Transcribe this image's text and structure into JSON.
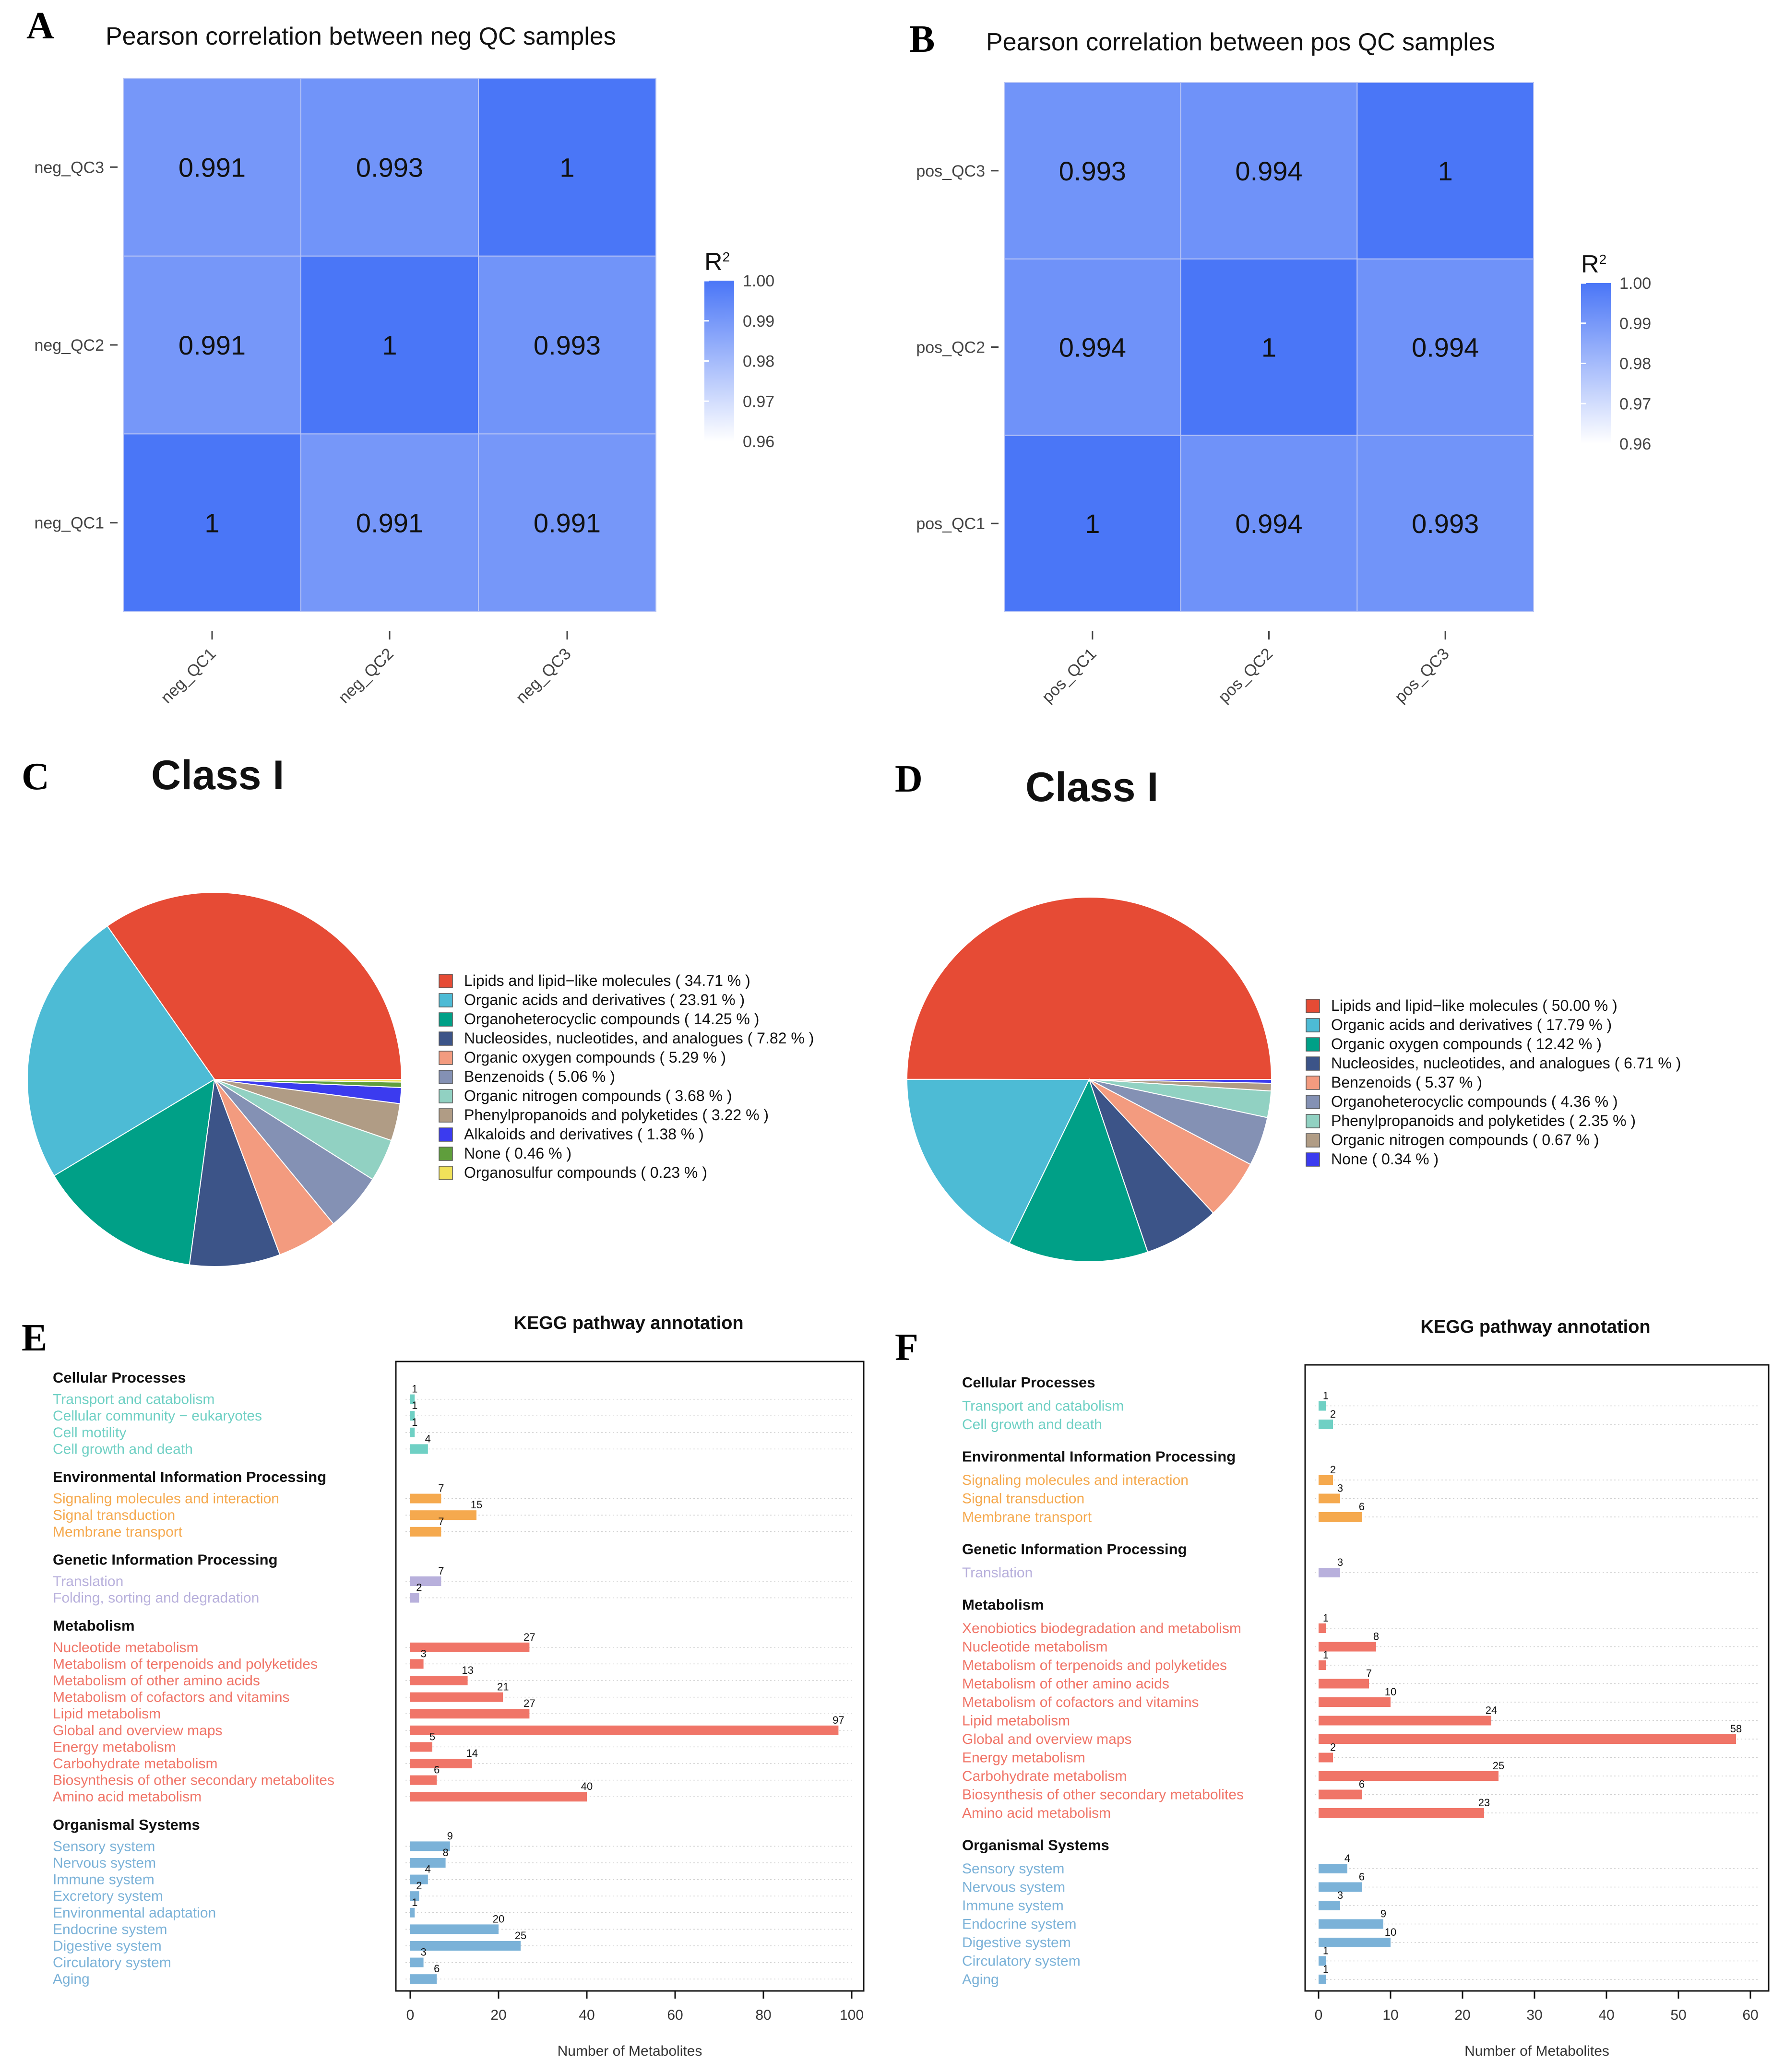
{
  "panels": {
    "A": "A",
    "B": "B",
    "C": "C",
    "D": "D",
    "E": "E",
    "F": "F"
  },
  "colors": {
    "heat_high": "#4a76f7",
    "heat_low": "#ffffff",
    "kegg": {
      "Cellular Processes": "#6fd0c4",
      "Environmental Information Processing": "#f5a94e",
      "Genetic Information Processing": "#b8b0dc",
      "Metabolism": "#f07568",
      "Organismal Systems": "#7bb2d8"
    }
  },
  "chart_data": [
    {
      "id": "A",
      "type": "heatmap",
      "title": "Pearson correlation between neg QC samples",
      "x_labels": [
        "neg_QC1",
        "neg_QC2",
        "neg_QC3"
      ],
      "y_labels": [
        "neg_QC1",
        "neg_QC2",
        "neg_QC3"
      ],
      "values": [
        [
          "1",
          "0.991",
          "0.991"
        ],
        [
          "0.991",
          "1",
          "0.993"
        ],
        [
          "0.991",
          "0.993",
          "1"
        ]
      ],
      "legend_title": "R",
      "legend_sup": "2",
      "legend_ticks": [
        "1.00",
        "0.99",
        "0.98",
        "0.97",
        "0.96"
      ],
      "range": [
        0.96,
        1.0
      ]
    },
    {
      "id": "B",
      "type": "heatmap",
      "title": "Pearson correlation between pos QC samples",
      "x_labels": [
        "pos_QC1",
        "pos_QC2",
        "pos_QC3"
      ],
      "y_labels": [
        "pos_QC1",
        "pos_QC2",
        "pos_QC3"
      ],
      "values": [
        [
          "1",
          "0.994",
          "0.993"
        ],
        [
          "0.994",
          "1",
          "0.994"
        ],
        [
          "0.993",
          "0.994",
          "1"
        ]
      ],
      "legend_title": "R",
      "legend_sup": "2",
      "legend_ticks": [
        "1.00",
        "0.99",
        "0.98",
        "0.97",
        "0.96"
      ],
      "range": [
        0.96,
        1.0
      ]
    },
    {
      "id": "C",
      "type": "pie",
      "title": "Class I",
      "slices": [
        {
          "label": "Lipids and lipid−like molecules",
          "pct": "34.71",
          "value": 34.71,
          "color": "#e64b35"
        },
        {
          "label": "Organic acids and derivatives",
          "pct": "23.91",
          "value": 23.91,
          "color": "#4dbbd5"
        },
        {
          "label": "Organoheterocyclic compounds",
          "pct": "14.25",
          "value": 14.25,
          "color": "#00a087"
        },
        {
          "label": "Nucleosides, nucleotides, and analogues",
          "pct": "7.82",
          "value": 7.82,
          "color": "#3c5488"
        },
        {
          "label": "Organic oxygen compounds",
          "pct": "5.29",
          "value": 5.29,
          "color": "#f39b7f"
        },
        {
          "label": "Benzenoids",
          "pct": "5.06",
          "value": 5.06,
          "color": "#8491b4"
        },
        {
          "label": "Organic nitrogen compounds",
          "pct": "3.68",
          "value": 3.68,
          "color": "#91d1c2"
        },
        {
          "label": "Phenylpropanoids and polyketides",
          "pct": "3.22",
          "value": 3.22,
          "color": "#b09c85"
        },
        {
          "label": "Alkaloids and derivatives",
          "pct": "1.38",
          "value": 1.38,
          "color": "#3b3bef"
        },
        {
          "label": "None",
          "pct": "0.46",
          "value": 0.46,
          "color": "#5f9e3c"
        },
        {
          "label": "Organosulfur compounds",
          "pct": "0.23",
          "value": 0.23,
          "color": "#f0e25a"
        }
      ]
    },
    {
      "id": "D",
      "type": "pie",
      "title": "Class I",
      "slices": [
        {
          "label": "Lipids and lipid−like molecules",
          "pct": "50.00",
          "value": 50.0,
          "color": "#e64b35"
        },
        {
          "label": "Organic acids and derivatives",
          "pct": "17.79",
          "value": 17.79,
          "color": "#4dbbd5"
        },
        {
          "label": "Organic oxygen compounds",
          "pct": "12.42",
          "value": 12.42,
          "color": "#00a087"
        },
        {
          "label": "Nucleosides, nucleotides, and analogues",
          "pct": "6.71",
          "value": 6.71,
          "color": "#3c5488"
        },
        {
          "label": "Benzenoids",
          "pct": "5.37",
          "value": 5.37,
          "color": "#f39b7f"
        },
        {
          "label": "Organoheterocyclic compounds",
          "pct": "4.36",
          "value": 4.36,
          "color": "#8491b4"
        },
        {
          "label": "Phenylpropanoids and polyketides",
          "pct": "2.35",
          "value": 2.35,
          "color": "#91d1c2"
        },
        {
          "label": "Organic nitrogen compounds",
          "pct": "0.67",
          "value": 0.67,
          "color": "#b09c85"
        },
        {
          "label": "None",
          "pct": "0.34",
          "value": 0.34,
          "color": "#3b3bef"
        }
      ]
    },
    {
      "id": "E",
      "type": "bar",
      "title": "KEGG pathway annotation",
      "xlabel": "Number of Metabolites",
      "xlim": [
        0,
        100
      ],
      "xticks": [
        0,
        20,
        40,
        60,
        80,
        100
      ],
      "groups": [
        {
          "name": "Cellular Processes",
          "items": [
            {
              "label": "Transport and catabolism",
              "value": 1
            },
            {
              "label": "Cellular community − eukaryotes",
              "value": 1
            },
            {
              "label": "Cell motility",
              "value": 1
            },
            {
              "label": "Cell growth and death",
              "value": 4
            }
          ]
        },
        {
          "name": "Environmental Information Processing",
          "items": [
            {
              "label": "Signaling molecules and interaction",
              "value": 7
            },
            {
              "label": "Signal transduction",
              "value": 15
            },
            {
              "label": "Membrane transport",
              "value": 7
            }
          ]
        },
        {
          "name": "Genetic Information Processing",
          "items": [
            {
              "label": "Translation",
              "value": 7
            },
            {
              "label": "Folding, sorting and degradation",
              "value": 2
            }
          ]
        },
        {
          "name": "Metabolism",
          "items": [
            {
              "label": "Nucleotide metabolism",
              "value": 27
            },
            {
              "label": "Metabolism of terpenoids and polyketides",
              "value": 3
            },
            {
              "label": "Metabolism of other amino acids",
              "value": 13
            },
            {
              "label": "Metabolism of cofactors and vitamins",
              "value": 21
            },
            {
              "label": "Lipid metabolism",
              "value": 27
            },
            {
              "label": "Global and overview maps",
              "value": 97
            },
            {
              "label": "Energy metabolism",
              "value": 5
            },
            {
              "label": "Carbohydrate metabolism",
              "value": 14
            },
            {
              "label": "Biosynthesis of other secondary metabolites",
              "value": 6
            },
            {
              "label": "Amino acid metabolism",
              "value": 40
            }
          ]
        },
        {
          "name": "Organismal Systems",
          "items": [
            {
              "label": "Sensory system",
              "value": 9
            },
            {
              "label": "Nervous system",
              "value": 8
            },
            {
              "label": "Immune system",
              "value": 4
            },
            {
              "label": "Excretory system",
              "value": 2
            },
            {
              "label": "Environmental adaptation",
              "value": 1
            },
            {
              "label": "Endocrine system",
              "value": 20
            },
            {
              "label": "Digestive system",
              "value": 25
            },
            {
              "label": "Circulatory system",
              "value": 3
            },
            {
              "label": "Aging",
              "value": 6
            }
          ]
        }
      ]
    },
    {
      "id": "F",
      "type": "bar",
      "title": "KEGG pathway annotation",
      "xlabel": "Number of Metabolites",
      "xlim": [
        0,
        60
      ],
      "xticks": [
        0,
        10,
        20,
        30,
        40,
        50,
        60
      ],
      "groups": [
        {
          "name": "Cellular Processes",
          "items": [
            {
              "label": "Transport and catabolism",
              "value": 1
            },
            {
              "label": "Cell growth and death",
              "value": 2
            }
          ]
        },
        {
          "name": "Environmental Information Processing",
          "items": [
            {
              "label": "Signaling molecules and interaction",
              "value": 2
            },
            {
              "label": "Signal transduction",
              "value": 3
            },
            {
              "label": "Membrane transport",
              "value": 6
            }
          ]
        },
        {
          "name": "Genetic Information Processing",
          "items": [
            {
              "label": "Translation",
              "value": 3
            }
          ]
        },
        {
          "name": "Metabolism",
          "items": [
            {
              "label": "Xenobiotics biodegradation and metabolism",
              "value": 1
            },
            {
              "label": "Nucleotide metabolism",
              "value": 8
            },
            {
              "label": "Metabolism of terpenoids and polyketides",
              "value": 1
            },
            {
              "label": "Metabolism of other amino acids",
              "value": 7
            },
            {
              "label": "Metabolism of cofactors and vitamins",
              "value": 10
            },
            {
              "label": "Lipid metabolism",
              "value": 24
            },
            {
              "label": "Global and overview maps",
              "value": 58
            },
            {
              "label": "Energy metabolism",
              "value": 2
            },
            {
              "label": "Carbohydrate metabolism",
              "value": 25
            },
            {
              "label": "Biosynthesis of other secondary metabolites",
              "value": 6
            },
            {
              "label": "Amino acid metabolism",
              "value": 23
            }
          ]
        },
        {
          "name": "Organismal Systems",
          "items": [
            {
              "label": "Sensory system",
              "value": 4
            },
            {
              "label": "Nervous system",
              "value": 6
            },
            {
              "label": "Immune system",
              "value": 3
            },
            {
              "label": "Endocrine system",
              "value": 9
            },
            {
              "label": "Digestive system",
              "value": 10
            },
            {
              "label": "Circulatory system",
              "value": 1
            },
            {
              "label": "Aging",
              "value": 1
            }
          ]
        }
      ]
    }
  ]
}
